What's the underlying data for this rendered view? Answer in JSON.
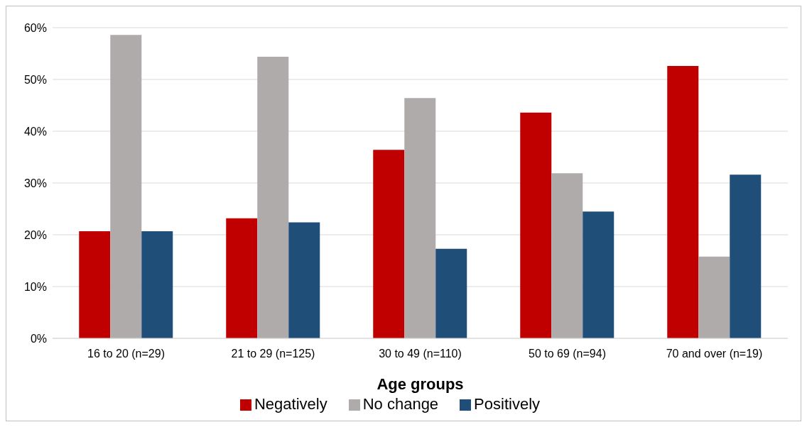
{
  "chart_data": {
    "type": "bar",
    "xlabel": "Age groups",
    "categories": [
      "16 to 20 (n=29)",
      "21 to 29 (n=125)",
      "30 to 49 (n=110)",
      "50 to 69 (n=94)",
      "70 and over (n=19)"
    ],
    "series": [
      {
        "name": "Negatively",
        "color": "#c00000",
        "values": [
          20.7,
          23.2,
          36.4,
          43.6,
          52.6
        ]
      },
      {
        "name": "No change",
        "color": "#afabab",
        "values": [
          58.6,
          54.4,
          46.4,
          31.9,
          15.8
        ]
      },
      {
        "name": "Positively",
        "color": "#1f4e79",
        "values": [
          20.7,
          22.4,
          17.3,
          24.5,
          31.6
        ]
      }
    ],
    "ylim": [
      0,
      60
    ],
    "yticks": [
      {
        "value": 0,
        "label": "0%"
      },
      {
        "value": 10,
        "label": "10%"
      },
      {
        "value": 20,
        "label": "20%"
      },
      {
        "value": 30,
        "label": "30%"
      },
      {
        "value": 40,
        "label": "40%"
      },
      {
        "value": 50,
        "label": "50%"
      },
      {
        "value": 60,
        "label": "60%"
      }
    ],
    "grid": "y",
    "legend": "bottom"
  }
}
